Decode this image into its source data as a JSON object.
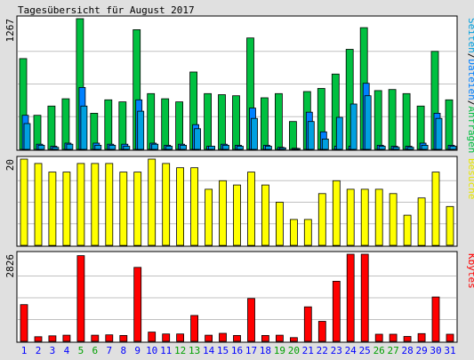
{
  "title": "Tagesübersicht für August 2017",
  "chart_data": [
    {
      "type": "bar",
      "panel": "hits",
      "y_max_label": "1267",
      "ylim": [
        0,
        1267
      ],
      "legend": [
        {
          "text": "Seiten",
          "color": "#00a0e0"
        },
        {
          "text": "Dateien",
          "color": "#0080ff"
        },
        {
          "text": "Anfragen",
          "color": "#00c040"
        }
      ],
      "legend_separator": "/",
      "categories": [
        "1",
        "2",
        "3",
        "4",
        "5",
        "6",
        "7",
        "8",
        "9",
        "10",
        "11",
        "12",
        "13",
        "14",
        "15",
        "16",
        "17",
        "18",
        "19",
        "20",
        "21",
        "22",
        "23",
        "24",
        "25",
        "26",
        "27",
        "28",
        "29",
        "30",
        "31"
      ],
      "series": [
        {
          "name": "Anfragen",
          "color": "#00c040",
          "values": [
            880,
            330,
            420,
            490,
            1267,
            350,
            480,
            460,
            1160,
            540,
            490,
            460,
            750,
            540,
            530,
            520,
            1080,
            500,
            540,
            270,
            560,
            590,
            730,
            970,
            1180,
            570,
            580,
            540,
            420,
            950,
            480
          ]
        },
        {
          "name": "Dateien",
          "color": "#0080ff",
          "values": [
            330,
            50,
            30,
            60,
            600,
            60,
            50,
            50,
            480,
            60,
            40,
            50,
            240,
            30,
            50,
            40,
            400,
            40,
            20,
            10,
            360,
            170,
            30,
            30,
            640,
            40,
            30,
            30,
            60,
            350,
            40
          ]
        },
        {
          "name": "Seiten",
          "color": "#00a0e0",
          "values": [
            250,
            40,
            20,
            50,
            420,
            40,
            40,
            30,
            370,
            50,
            30,
            40,
            200,
            30,
            40,
            30,
            300,
            30,
            15,
            5,
            270,
            100,
            310,
            440,
            520,
            30,
            20,
            20,
            40,
            300,
            30
          ]
        }
      ]
    },
    {
      "type": "bar",
      "panel": "visits",
      "y_max_label": "20",
      "ylim": [
        0,
        20
      ],
      "legend": [
        {
          "text": "Besuche",
          "color": "#e8e800"
        }
      ],
      "categories": [
        "1",
        "2",
        "3",
        "4",
        "5",
        "6",
        "7",
        "8",
        "9",
        "10",
        "11",
        "12",
        "13",
        "14",
        "15",
        "16",
        "17",
        "18",
        "19",
        "20",
        "21",
        "22",
        "23",
        "24",
        "25",
        "26",
        "27",
        "28",
        "29",
        "30",
        "31"
      ],
      "series": [
        {
          "name": "Besuche",
          "color": "#ffff00",
          "values": [
            20,
            19,
            17,
            17,
            19,
            19,
            19,
            17,
            17,
            20,
            19,
            18,
            18,
            13,
            15,
            14,
            17,
            14,
            10,
            6,
            6,
            12,
            15,
            13,
            13,
            13,
            12,
            7,
            11,
            17,
            9
          ]
        }
      ]
    },
    {
      "type": "bar",
      "panel": "kbytes",
      "y_max_label": "2826",
      "ylim": [
        0,
        2826
      ],
      "legend": [
        {
          "text": "Kbytes",
          "color": "#ff0000"
        }
      ],
      "categories": [
        "1",
        "2",
        "3",
        "4",
        "5",
        "6",
        "7",
        "8",
        "9",
        "10",
        "11",
        "12",
        "13",
        "14",
        "15",
        "16",
        "17",
        "18",
        "19",
        "20",
        "21",
        "22",
        "23",
        "24",
        "25",
        "26",
        "27",
        "28",
        "29",
        "30",
        "31"
      ],
      "series": [
        {
          "name": "Kbytes",
          "color": "#ff0000",
          "values": [
            1190,
            150,
            180,
            200,
            2780,
            200,
            210,
            190,
            2400,
            300,
            240,
            240,
            840,
            200,
            260,
            190,
            1390,
            190,
            200,
            120,
            1120,
            650,
            1950,
            2826,
            2826,
            230,
            230,
            160,
            250,
            1440,
            230
          ]
        }
      ]
    }
  ],
  "x_axis": {
    "labels": [
      "1",
      "2",
      "3",
      "4",
      "5",
      "6",
      "7",
      "8",
      "9",
      "10",
      "11",
      "12",
      "13",
      "14",
      "15",
      "16",
      "17",
      "18",
      "19",
      "20",
      "21",
      "22",
      "23",
      "24",
      "25",
      "26",
      "27",
      "28",
      "29",
      "30",
      "31"
    ],
    "weekend_days": [
      "5",
      "6",
      "12",
      "13",
      "19",
      "20",
      "26",
      "27"
    ],
    "weekday_color": "#0000ff",
    "weekend_color": "#00a000"
  },
  "colors": {
    "background": "#e0e0e0",
    "panel": "#ffffff",
    "grid": "#c0c0c0",
    "outline": "#000000",
    "text": "#000000"
  }
}
